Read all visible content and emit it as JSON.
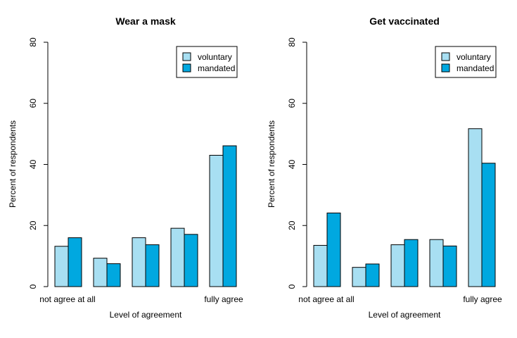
{
  "colors": {
    "voluntary": "#a8dff2",
    "mandated": "#00a8e0"
  },
  "chart_data": [
    {
      "type": "bar",
      "title": "Wear a mask",
      "xlabel": "Level of agreement",
      "ylabel": "Percent of respondents",
      "ylim": [
        0,
        80
      ],
      "yticks": [
        0,
        20,
        40,
        60,
        80
      ],
      "categories": [
        "not agree at all",
        "",
        "",
        "",
        "fully agree"
      ],
      "series": [
        {
          "name": "voluntary",
          "values": [
            13.2,
            9.3,
            16.0,
            19.1,
            43.0
          ]
        },
        {
          "name": "mandated",
          "values": [
            16.0,
            7.5,
            13.7,
            17.1,
            46.1
          ]
        }
      ],
      "legend_position": "top-right",
      "grid": false
    },
    {
      "type": "bar",
      "title": "Get vaccinated",
      "xlabel": "Level of agreement",
      "ylabel": "Percent of respondents",
      "ylim": [
        0,
        80
      ],
      "yticks": [
        0,
        20,
        40,
        60,
        80
      ],
      "categories": [
        "not agree at all",
        "",
        "",
        "",
        "fully agree"
      ],
      "series": [
        {
          "name": "voluntary",
          "values": [
            13.5,
            6.3,
            13.7,
            15.4,
            51.7
          ]
        },
        {
          "name": "mandated",
          "values": [
            24.1,
            7.4,
            15.4,
            13.3,
            40.4
          ]
        }
      ],
      "legend_position": "top-right",
      "grid": false
    }
  ]
}
